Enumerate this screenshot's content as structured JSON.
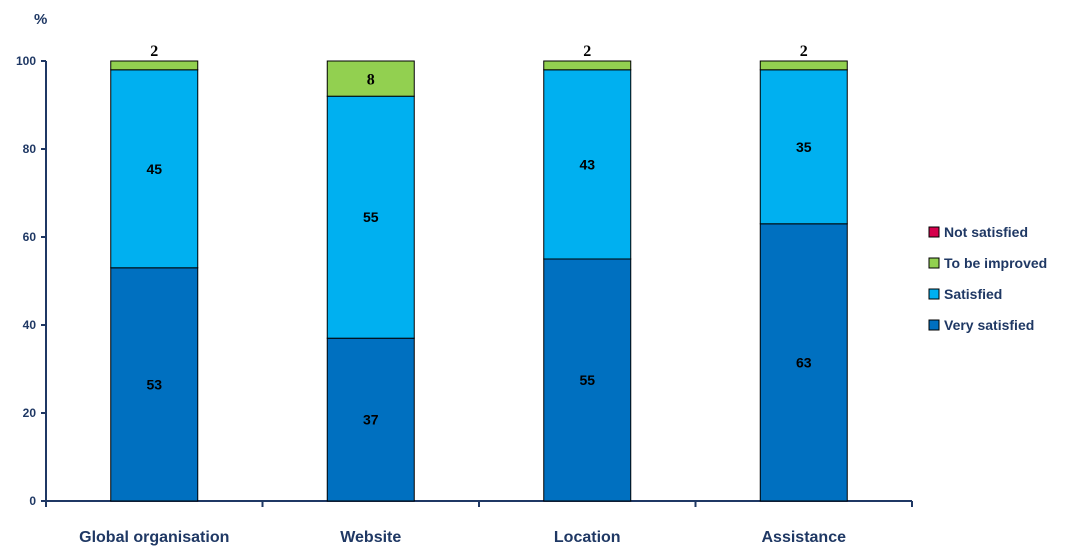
{
  "chart_data": {
    "type": "bar",
    "stacked": true,
    "unit_label": "%",
    "categories": [
      "Global organisation",
      "Website",
      "Location",
      "Assistance"
    ],
    "ylim": [
      0,
      100
    ],
    "yticks": [
      0,
      20,
      40,
      60,
      80,
      100
    ],
    "grid": false,
    "legend_position": "right",
    "series": [
      {
        "name": "Very satisfied",
        "color": "#0070c0",
        "values": [
          53,
          37,
          55,
          63
        ]
      },
      {
        "name": "Satisfied",
        "color": "#00b0f0",
        "values": [
          45,
          55,
          43,
          35
        ]
      },
      {
        "name": "To be improved",
        "color": "#92d050",
        "values": [
          2,
          8,
          2,
          2
        ]
      },
      {
        "name": "Not satisfied",
        "color": "#d6004c",
        "values": [
          0,
          0,
          0,
          0
        ]
      }
    ],
    "legend_order": [
      "Not satisfied",
      "To be improved",
      "Satisfied",
      "Very satisfied"
    ],
    "axis_color": "#1f3864"
  }
}
